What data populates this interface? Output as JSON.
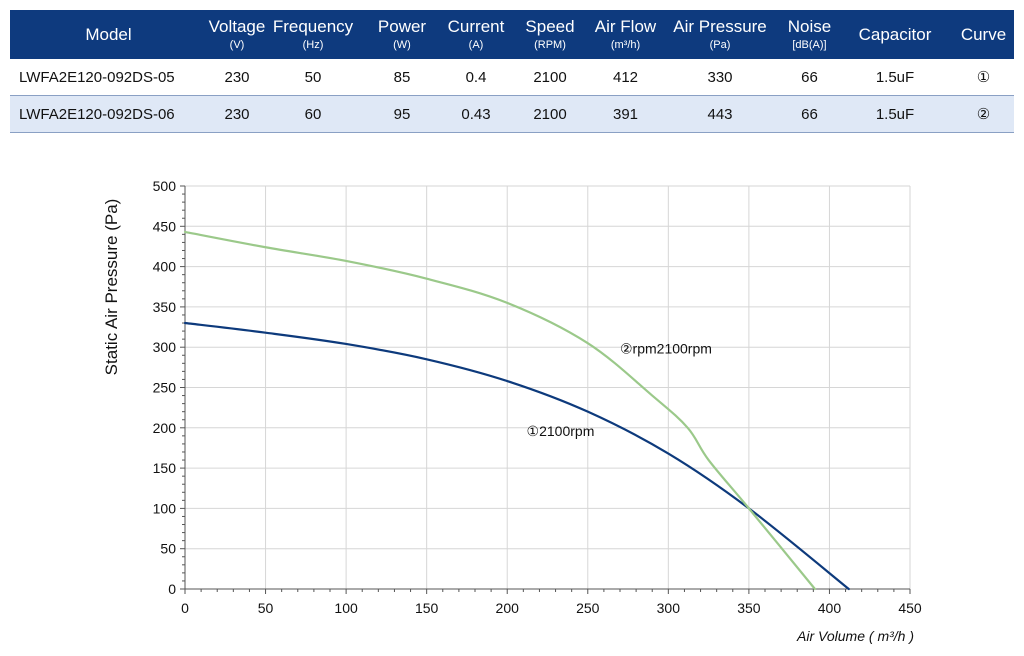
{
  "table": {
    "headers": [
      {
        "main": "Model",
        "unit": ""
      },
      {
        "main": "Voltage",
        "unit": "(V)"
      },
      {
        "main": "Frequency",
        "unit": "(Hz)"
      },
      {
        "main": "Power",
        "unit": "(W)"
      },
      {
        "main": "Current",
        "unit": "(A)"
      },
      {
        "main": "Speed",
        "unit": "(RPM)"
      },
      {
        "main": "Air Flow",
        "unit": "(m³/h)"
      },
      {
        "main": "Air Pressure",
        "unit": "(Pa)"
      },
      {
        "main": "Noise",
        "unit": "[dB(A)]"
      },
      {
        "main": "Capacitor",
        "unit": ""
      },
      {
        "main": "Curve",
        "unit": ""
      }
    ],
    "rows": [
      [
        "LWFA2E120-092DS-05",
        "230",
        "50",
        "85",
        "0.4",
        "2100",
        "412",
        "330",
        "66",
        "1.5uF",
        "①"
      ],
      [
        "LWFA2E120-092DS-06",
        "230",
        "60",
        "95",
        "0.43",
        "2100",
        "391",
        "443",
        "66",
        "1.5uF",
        "②"
      ]
    ]
  },
  "chart_data": {
    "type": "line",
    "title": "",
    "xlabel": "Air Volume ( m³/h )",
    "ylabel": "Static Air Pressure  (Pa)",
    "xlim": [
      0,
      450
    ],
    "ylim": [
      0,
      500
    ],
    "xticks": [
      "0",
      "50",
      "100",
      "150",
      "200",
      "250",
      "300",
      "350",
      "400",
      "450"
    ],
    "yticks": [
      "0",
      "50",
      "100",
      "150",
      "200",
      "250",
      "300",
      "350",
      "400",
      "450",
      "500"
    ],
    "grid": true,
    "series": [
      {
        "name": "①2100rpm",
        "color": "#0d3a7c",
        "x": [
          0,
          50,
          100,
          150,
          200,
          250,
          300,
          350,
          412
        ],
        "y": [
          330,
          318,
          304,
          285,
          258,
          220,
          168,
          100,
          0
        ]
      },
      {
        "name": "②rpm2100rpm",
        "color": "#9bc98a",
        "x": [
          0,
          50,
          100,
          150,
          200,
          250,
          290,
          312,
          325,
          350,
          391
        ],
        "y": [
          443,
          424,
          407,
          385,
          355,
          305,
          240,
          200,
          160,
          100,
          0
        ]
      }
    ],
    "labels": [
      {
        "text": "②rpm2100rpm",
        "x": 270,
        "y": 292
      },
      {
        "text": "①2100rpm",
        "x": 212,
        "y": 190
      }
    ]
  }
}
